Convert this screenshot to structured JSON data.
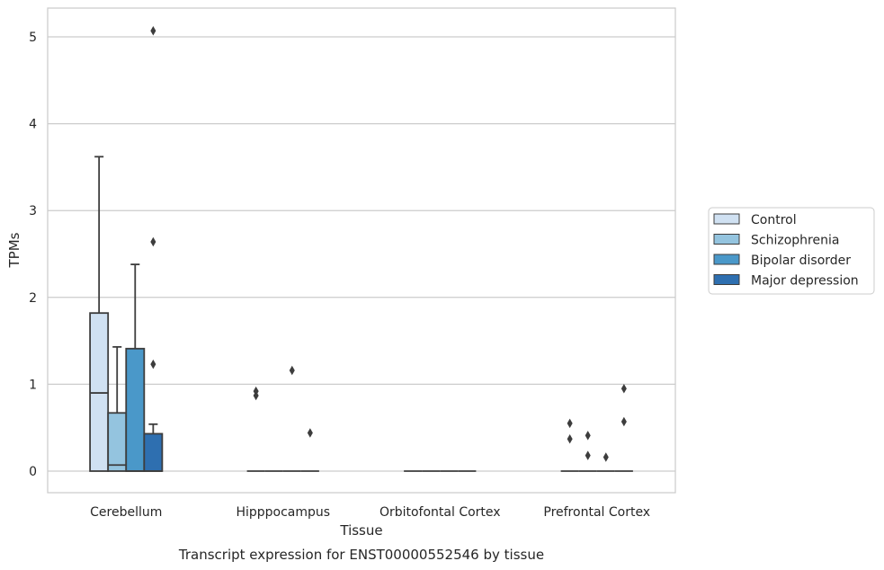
{
  "chart_data": {
    "type": "box",
    "caption": "Transcript expression for ENST00000552546 by tissue",
    "xlabel": "Tissue",
    "ylabel": "TPMs",
    "ylim": [
      -0.25,
      5.33
    ],
    "yticks": [
      0,
      1,
      2,
      3,
      4,
      5
    ],
    "grid": true,
    "legend_position": "right",
    "categories": [
      "Cerebellum",
      "Hipppocampus",
      "Orbitofontal Cortex",
      "Prefrontal Cortex"
    ],
    "series": [
      {
        "name": "Control",
        "color": "#d0e1f2",
        "boxes": [
          {
            "q1": 0,
            "median": 0.9,
            "q3": 1.82,
            "whisker_low": 0,
            "whisker_high": 3.62,
            "outliers": []
          },
          {
            "q1": 0,
            "median": 0,
            "q3": 0,
            "whisker_low": 0,
            "whisker_high": 0,
            "outliers": [
              0.87,
              0.92
            ]
          },
          {
            "q1": 0,
            "median": 0,
            "q3": 0,
            "whisker_low": 0,
            "whisker_high": 0,
            "outliers": []
          },
          {
            "q1": 0,
            "median": 0,
            "q3": 0,
            "whisker_low": 0,
            "whisker_high": 0,
            "outliers": [
              0.37,
              0.55
            ]
          }
        ]
      },
      {
        "name": "Schizophrenia",
        "color": "#94c4df",
        "boxes": [
          {
            "q1": 0,
            "median": 0.07,
            "q3": 0.67,
            "whisker_low": 0,
            "whisker_high": 1.43,
            "outliers": []
          },
          {
            "q1": 0,
            "median": 0,
            "q3": 0,
            "whisker_low": 0,
            "whisker_high": 0,
            "outliers": []
          },
          {
            "q1": 0,
            "median": 0,
            "q3": 0,
            "whisker_low": 0,
            "whisker_high": 0,
            "outliers": []
          },
          {
            "q1": 0,
            "median": 0,
            "q3": 0,
            "whisker_low": 0,
            "whisker_high": 0,
            "outliers": [
              0.18,
              0.41
            ]
          }
        ]
      },
      {
        "name": "Bipolar disorder",
        "color": "#4a98c9",
        "boxes": [
          {
            "q1": 0,
            "median": 0,
            "q3": 1.41,
            "whisker_low": 0,
            "whisker_high": 2.38,
            "outliers": []
          },
          {
            "q1": 0,
            "median": 0,
            "q3": 0,
            "whisker_low": 0,
            "whisker_high": 0,
            "outliers": [
              1.16
            ]
          },
          {
            "q1": 0,
            "median": 0,
            "q3": 0,
            "whisker_low": 0,
            "whisker_high": 0,
            "outliers": []
          },
          {
            "q1": 0,
            "median": 0,
            "q3": 0,
            "whisker_low": 0,
            "whisker_high": 0,
            "outliers": [
              0.16
            ]
          }
        ]
      },
      {
        "name": "Major depression",
        "color": "#2e6fb0",
        "boxes": [
          {
            "q1": 0,
            "median": 0,
            "q3": 0.43,
            "whisker_low": 0,
            "whisker_high": 0.54,
            "outliers": [
              1.23,
              2.64,
              5.07
            ]
          },
          {
            "q1": 0,
            "median": 0,
            "q3": 0,
            "whisker_low": 0,
            "whisker_high": 0,
            "outliers": [
              0.44
            ]
          },
          {
            "q1": 0,
            "median": 0,
            "q3": 0,
            "whisker_low": 0,
            "whisker_high": 0,
            "outliers": []
          },
          {
            "q1": 0,
            "median": 0,
            "q3": 0,
            "whisker_low": 0,
            "whisker_high": 0,
            "outliers": [
              0.57,
              0.95
            ]
          }
        ]
      }
    ]
  }
}
